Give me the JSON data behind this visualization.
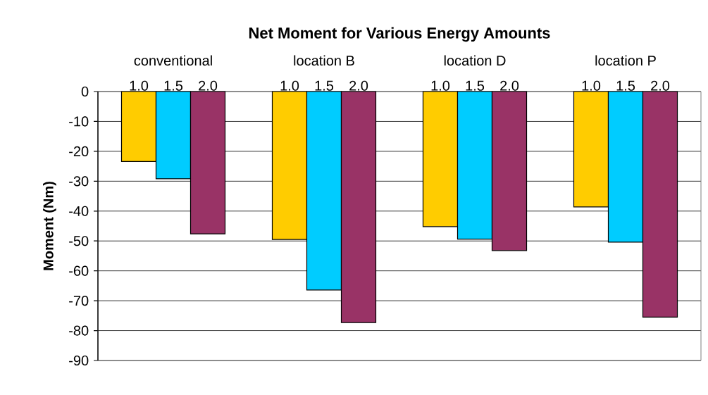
{
  "chart_data": {
    "type": "bar",
    "title": "Net Moment for Various Energy Amounts",
    "ylabel": "Moment (Nm)",
    "categories": [
      "conventional",
      "location B",
      "location D",
      "location P"
    ],
    "series": [
      {
        "name": "1.0",
        "color": "#ffcc00",
        "values": [
          -23.4,
          -49.5,
          -45.2,
          -38.6
        ]
      },
      {
        "name": "1.5",
        "color": "#00ccff",
        "values": [
          -29.2,
          -66.4,
          -49.4,
          -50.4
        ]
      },
      {
        "name": "2.0",
        "color": "#993366",
        "values": [
          -47.6,
          -77.3,
          -53.2,
          -75.5
        ]
      }
    ],
    "ylim": [
      -90,
      0
    ],
    "yticks": [
      -90,
      -80,
      -70,
      -60,
      -50,
      -40,
      -30,
      -20,
      -10,
      0
    ],
    "grid": "y"
  }
}
